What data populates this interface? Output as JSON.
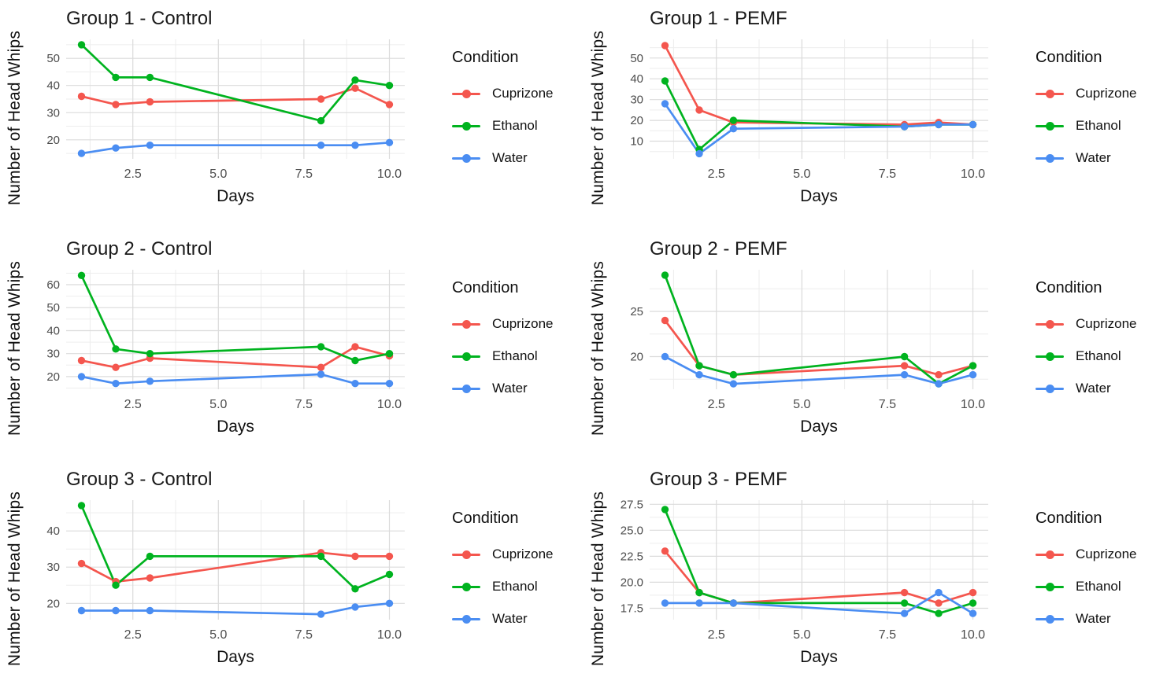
{
  "axes": {
    "xlabel": "Days",
    "ylabel": "Number of Head Whips"
  },
  "legend": {
    "title": "Condition",
    "position": "right",
    "items": [
      {
        "label": "Cuprizone",
        "color": "#f4564e"
      },
      {
        "label": "Ethanol",
        "color": "#00b31f"
      },
      {
        "label": "Water",
        "color": "#4a8df2"
      }
    ]
  },
  "colors": {
    "cuprizone": "#f4564e",
    "ethanol": "#00b31f",
    "water": "#4a8df2",
    "grid_major": "#dbdbdb",
    "grid_minor": "#ededed",
    "tick_text": "#4d4d4d"
  },
  "chart_data": [
    {
      "type": "line",
      "title": "Group 1 - Control",
      "xlabel": "Days",
      "ylabel": "Number of Head Whips",
      "legend_title": "Condition",
      "legend_position": "right",
      "grid": true,
      "x": [
        1,
        2,
        3,
        8,
        9,
        10
      ],
      "xticks": [
        2.5,
        5.0,
        7.5,
        10.0
      ],
      "xtick_labels": [
        "2.5",
        "5.0",
        "7.5",
        "10.0"
      ],
      "xlim": [
        0.55,
        10.45
      ],
      "yticks": [
        20,
        30,
        40,
        50
      ],
      "ytick_labels": [
        "20",
        "30",
        "40",
        "50"
      ],
      "ylim": [
        13,
        57
      ],
      "series": [
        {
          "name": "Cuprizone",
          "color": "#f4564e",
          "values": [
            36,
            33,
            34,
            35,
            39,
            33
          ]
        },
        {
          "name": "Ethanol",
          "color": "#00b31f",
          "values": [
            55,
            43,
            43,
            27,
            42,
            40
          ]
        },
        {
          "name": "Water",
          "color": "#4a8df2",
          "values": [
            15,
            17,
            18,
            18,
            18,
            19
          ]
        }
      ]
    },
    {
      "type": "line",
      "title": "Group 1 - PEMF",
      "xlabel": "Days",
      "ylabel": "Number of Head Whips",
      "legend_title": "Condition",
      "legend_position": "right",
      "grid": true,
      "x": [
        1,
        2,
        3,
        8,
        9,
        10
      ],
      "xticks": [
        2.5,
        5.0,
        7.5,
        10.0
      ],
      "xtick_labels": [
        "2.5",
        "5.0",
        "7.5",
        "10.0"
      ],
      "xlim": [
        0.55,
        10.45
      ],
      "yticks": [
        10,
        20,
        30,
        40,
        50
      ],
      "ytick_labels": [
        "10",
        "20",
        "30",
        "40",
        "50"
      ],
      "ylim": [
        1.5,
        59
      ],
      "series": [
        {
          "name": "Cuprizone",
          "color": "#f4564e",
          "values": [
            56,
            25,
            19,
            18,
            19,
            18
          ]
        },
        {
          "name": "Ethanol",
          "color": "#00b31f",
          "values": [
            39,
            6,
            20,
            17,
            18,
            18
          ]
        },
        {
          "name": "Water",
          "color": "#4a8df2",
          "values": [
            28,
            4,
            16,
            17,
            18,
            18
          ]
        }
      ]
    },
    {
      "type": "line",
      "title": "Group 2 - Control",
      "xlabel": "Days",
      "ylabel": "Number of Head Whips",
      "legend_title": "Condition",
      "legend_position": "right",
      "grid": true,
      "x": [
        1,
        2,
        3,
        8,
        9,
        10
      ],
      "xticks": [
        2.5,
        5.0,
        7.5,
        10.0
      ],
      "xtick_labels": [
        "2.5",
        "5.0",
        "7.5",
        "10.0"
      ],
      "xlim": [
        0.55,
        10.45
      ],
      "yticks": [
        20,
        30,
        40,
        50,
        60
      ],
      "ytick_labels": [
        "20",
        "30",
        "40",
        "50",
        "60"
      ],
      "ylim": [
        14.5,
        66.5
      ],
      "series": [
        {
          "name": "Cuprizone",
          "color": "#f4564e",
          "values": [
            27,
            24,
            28,
            24,
            33,
            29
          ]
        },
        {
          "name": "Ethanol",
          "color": "#00b31f",
          "values": [
            64,
            32,
            30,
            33,
            27,
            30
          ]
        },
        {
          "name": "Water",
          "color": "#4a8df2",
          "values": [
            20,
            17,
            18,
            21,
            17,
            17
          ]
        }
      ]
    },
    {
      "type": "line",
      "title": "Group 2 - PEMF",
      "xlabel": "Days",
      "ylabel": "Number of Head Whips",
      "legend_title": "Condition",
      "legend_position": "right",
      "grid": true,
      "x": [
        1,
        2,
        3,
        8,
        9,
        10
      ],
      "xticks": [
        2.5,
        5.0,
        7.5,
        10.0
      ],
      "xtick_labels": [
        "2.5",
        "5.0",
        "7.5",
        "10.0"
      ],
      "xlim": [
        0.55,
        10.45
      ],
      "yticks": [
        20,
        25
      ],
      "ytick_labels": [
        "20",
        "25"
      ],
      "ylim": [
        16.4,
        29.6
      ],
      "series": [
        {
          "name": "Cuprizone",
          "color": "#f4564e",
          "values": [
            24,
            19,
            18,
            19,
            18,
            19
          ]
        },
        {
          "name": "Ethanol",
          "color": "#00b31f",
          "values": [
            29,
            19,
            18,
            20,
            17,
            19
          ]
        },
        {
          "name": "Water",
          "color": "#4a8df2",
          "values": [
            20,
            18,
            17,
            18,
            17,
            18
          ]
        }
      ]
    },
    {
      "type": "line",
      "title": "Group 3 - Control",
      "xlabel": "Days",
      "ylabel": "Number of Head Whips",
      "legend_title": "Condition",
      "legend_position": "right",
      "grid": true,
      "x": [
        1,
        2,
        3,
        8,
        9,
        10
      ],
      "xticks": [
        2.5,
        5.0,
        7.5,
        10.0
      ],
      "xtick_labels": [
        "2.5",
        "5.0",
        "7.5",
        "10.0"
      ],
      "xlim": [
        0.55,
        10.45
      ],
      "yticks": [
        20,
        30,
        40
      ],
      "ytick_labels": [
        "20",
        "30",
        "40"
      ],
      "ylim": [
        15.5,
        48.5
      ],
      "series": [
        {
          "name": "Cuprizone",
          "color": "#f4564e",
          "values": [
            31,
            26,
            27,
            34,
            33,
            33
          ]
        },
        {
          "name": "Ethanol",
          "color": "#00b31f",
          "values": [
            47,
            25,
            33,
            33,
            24,
            28
          ]
        },
        {
          "name": "Water",
          "color": "#4a8df2",
          "values": [
            18,
            18,
            18,
            17,
            19,
            20
          ]
        }
      ]
    },
    {
      "type": "line",
      "title": "Group 3 - PEMF",
      "xlabel": "Days",
      "ylabel": "Number of Head Whips",
      "legend_title": "Condition",
      "legend_position": "right",
      "grid": true,
      "x": [
        1,
        2,
        3,
        8,
        9,
        10
      ],
      "xticks": [
        2.5,
        5.0,
        7.5,
        10.0
      ],
      "xtick_labels": [
        "2.5",
        "5.0",
        "7.5",
        "10.0"
      ],
      "xlim": [
        0.55,
        10.45
      ],
      "yticks": [
        17.5,
        20,
        22.5,
        25,
        27.5
      ],
      "ytick_labels": [
        "17.5",
        "20.0",
        "22.5",
        "25.0",
        "27.5"
      ],
      "ylim": [
        16.4,
        27.9
      ],
      "series": [
        {
          "name": "Cuprizone",
          "color": "#f4564e",
          "values": [
            23,
            19,
            18,
            19,
            18,
            19
          ]
        },
        {
          "name": "Ethanol",
          "color": "#00b31f",
          "values": [
            27,
            19,
            18,
            18,
            17,
            18
          ]
        },
        {
          "name": "Water",
          "color": "#4a8df2",
          "values": [
            18,
            18,
            18,
            17,
            19,
            17
          ]
        }
      ]
    }
  ]
}
